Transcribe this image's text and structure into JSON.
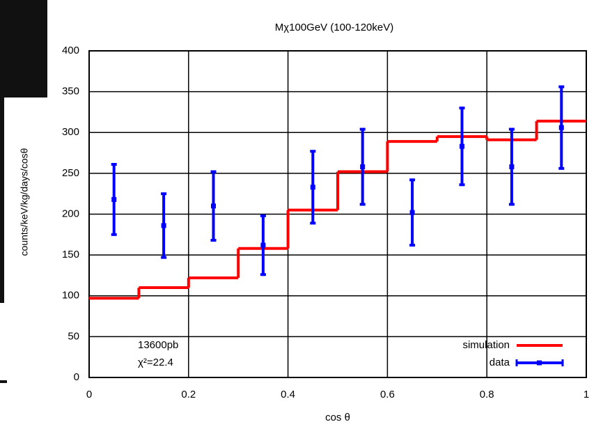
{
  "chart_data": {
    "type": "step",
    "title": "Mχ100GeV (100-120keV)",
    "x_label": "cos θ",
    "y_label": "counts/keV/kg/days/cosθ",
    "annotations": [
      "13600pb",
      "χ²=22.4"
    ],
    "xlim": [
      0,
      1
    ],
    "ylim": [
      0,
      400
    ],
    "xticks": [
      0,
      0.2,
      0.4,
      0.6,
      0.8,
      1
    ],
    "yticks": [
      0,
      50,
      100,
      150,
      200,
      250,
      300,
      350,
      400
    ],
    "grid": true,
    "legend": "lower right",
    "series": [
      {
        "name": "simulation",
        "type": "step",
        "color": "#ff0000",
        "bins": [
          0,
          0.1,
          0.2,
          0.3,
          0.4,
          0.5,
          0.6,
          0.7,
          0.8,
          0.9,
          1
        ],
        "values": [
          97,
          110,
          122,
          158,
          205,
          252,
          289,
          295,
          291,
          314
        ]
      },
      {
        "name": "data",
        "type": "errorbar",
        "color": "#0000ff",
        "x": [
          0.05,
          0.15,
          0.25,
          0.35,
          0.45,
          0.55,
          0.65,
          0.75,
          0.85,
          0.95
        ],
        "values": [
          218,
          186,
          210,
          162,
          233,
          258,
          202,
          283,
          258,
          306
        ],
        "errors": [
          43,
          39,
          42,
          36,
          44,
          46,
          40,
          47,
          46,
          50
        ]
      }
    ]
  }
}
